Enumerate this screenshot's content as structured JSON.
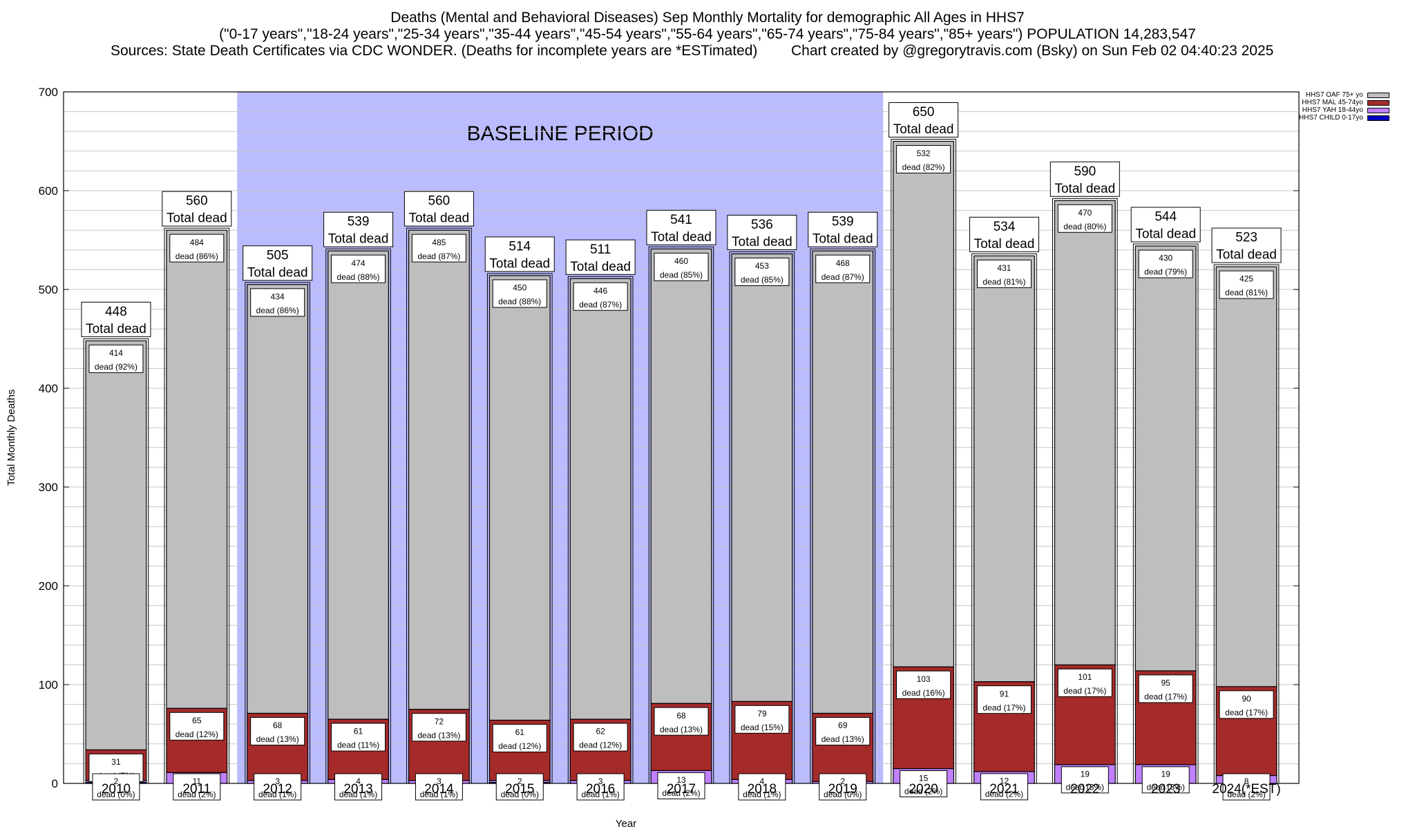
{
  "title": {
    "line1": "Deaths (Mental and Behavioral Diseases) Sep Monthly Mortality for demographic All Ages in HHS7",
    "line2": "(\"0-17 years\",\"18-24 years\",\"25-34 years\",\"35-44 years\",\"45-54 years\",\"55-64 years\",\"65-74 years\",\"75-84 years\",\"85+ years\") POPULATION 14,283,547",
    "sources": "Sources: State Death Certificates via CDC WONDER. (Deaths for incomplete years are *ESTimated)",
    "credit": "Chart created by @gregorytravis.com (Bsky) on Sun Feb 02 04:40:23 2025"
  },
  "colors": {
    "baseline": "#bbbbff",
    "oaf": "#bebebe",
    "mal": "#a52a2a",
    "yah": "#c080ff",
    "child": "#0000c0"
  },
  "chart_data": {
    "type": "bar",
    "stacked": true,
    "xlabel": "Year",
    "ylabel": "Total Monthly Deaths",
    "ylim": [
      0,
      700
    ],
    "yticks": [
      0,
      100,
      200,
      300,
      400,
      500,
      600,
      700
    ],
    "grid": true,
    "legend_position": "top-right",
    "baseline_label": "BASELINE PERIOD",
    "baseline_range": [
      "2012",
      "2019"
    ],
    "total_label_suffix": "Total dead",
    "segment_label_word": "dead",
    "categories": [
      "2010",
      "2011",
      "2012",
      "2013",
      "2014",
      "2015",
      "2016",
      "2017",
      "2018",
      "2019",
      "2020",
      "2021",
      "2022",
      "2023",
      "2024(*EST)"
    ],
    "totals": [
      448,
      560,
      505,
      539,
      560,
      514,
      511,
      541,
      536,
      539,
      650,
      534,
      590,
      544,
      523
    ],
    "series": [
      {
        "key": "child",
        "name": "HHS7 CHILD 0-17yo",
        "values": [
          1,
          0,
          0,
          0,
          0,
          1,
          0,
          0,
          0,
          0,
          0,
          0,
          0,
          0,
          0
        ]
      },
      {
        "key": "yah",
        "name": "HHS7 YAH 18-44yo",
        "values": [
          2,
          11,
          3,
          4,
          3,
          2,
          3,
          13,
          4,
          2,
          15,
          12,
          19,
          19,
          8
        ],
        "pct": [
          "0%",
          "2%",
          "1%",
          "1%",
          "1%",
          "0%",
          "1%",
          "2%",
          "1%",
          "0%",
          "2%",
          "2%",
          "3%",
          "3%",
          "2%"
        ]
      },
      {
        "key": "mal",
        "name": "HHS7 MAL 45-74yo",
        "values": [
          31,
          65,
          68,
          61,
          72,
          61,
          62,
          68,
          79,
          69,
          103,
          91,
          101,
          95,
          90
        ],
        "pct": [
          "7%",
          "12%",
          "13%",
          "11%",
          "13%",
          "12%",
          "12%",
          "13%",
          "15%",
          "13%",
          "16%",
          "17%",
          "17%",
          "17%",
          "17%"
        ]
      },
      {
        "key": "oaf",
        "name": "HHS7 OAF 75+ yo",
        "values": [
          414,
          484,
          434,
          474,
          485,
          450,
          446,
          460,
          453,
          468,
          532,
          431,
          470,
          430,
          425
        ],
        "pct": [
          "92%",
          "86%",
          "86%",
          "88%",
          "87%",
          "88%",
          "87%",
          "85%",
          "85%",
          "87%",
          "82%",
          "81%",
          "80%",
          "79%",
          "81%"
        ]
      }
    ]
  }
}
